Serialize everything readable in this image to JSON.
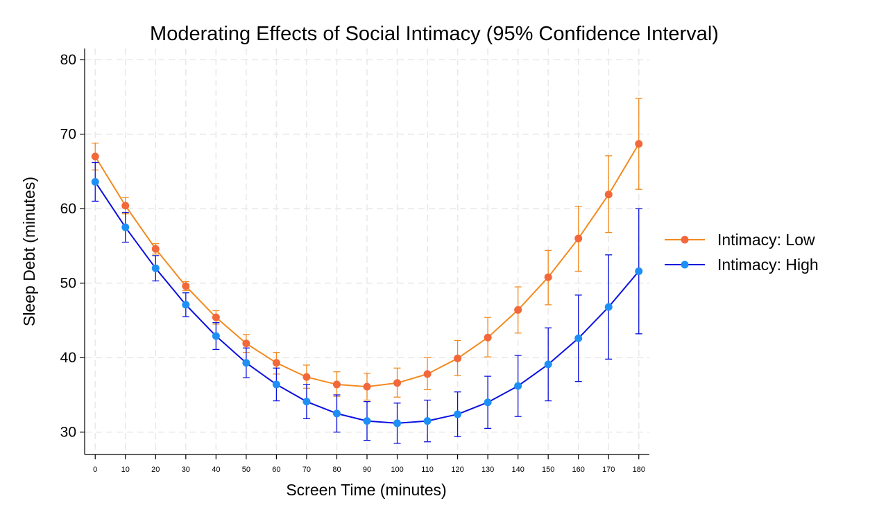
{
  "chart_data": {
    "type": "line",
    "title": "Moderating Effects of Social Intimacy (95% Confidence Interval)",
    "xlabel": "Screen Time (minutes)",
    "ylabel": "Sleep Debt (minutes)",
    "x": [
      0,
      10,
      20,
      30,
      40,
      50,
      60,
      70,
      80,
      90,
      100,
      110,
      120,
      130,
      140,
      150,
      160,
      170,
      180
    ],
    "x_ticks": [
      "0",
      "10",
      "20",
      "30",
      "40",
      "50",
      "60",
      "70",
      "80",
      "90",
      "100",
      "110",
      "120",
      "130",
      "140",
      "150",
      "160",
      "170",
      "180"
    ],
    "xlim": [
      -3.5,
      183.5
    ],
    "ylim": [
      27,
      81.5
    ],
    "y_ticks": [
      30,
      40,
      50,
      60,
      70,
      80
    ],
    "y_tick_labels": [
      "30",
      "40",
      "50",
      "60",
      "70",
      "80"
    ],
    "grid": true,
    "legend_position": "right",
    "series": [
      {
        "name": "Intimacy: Low",
        "line_color": "#f28a1e",
        "marker_color": "#f2683a",
        "values": [
          67.0,
          60.4,
          54.6,
          49.6,
          45.4,
          41.9,
          39.3,
          37.4,
          36.4,
          36.1,
          36.6,
          37.8,
          39.9,
          42.7,
          46.4,
          50.8,
          56.0,
          61.9,
          68.7
        ],
        "ci_lower": [
          65.2,
          59.3,
          53.9,
          49.0,
          44.5,
          40.7,
          37.8,
          35.9,
          34.8,
          34.3,
          34.7,
          35.7,
          37.6,
          40.1,
          43.3,
          47.1,
          51.6,
          56.8,
          62.6
        ],
        "ci_upper": [
          68.8,
          61.5,
          55.3,
          50.2,
          46.3,
          43.1,
          40.7,
          39.0,
          38.1,
          37.9,
          38.6,
          40.0,
          42.3,
          45.4,
          49.5,
          54.4,
          60.3,
          67.1,
          74.8
        ]
      },
      {
        "name": "Intimacy: High",
        "line_color": "#0a10e0",
        "marker_color": "#1e8ff5",
        "values": [
          63.6,
          57.5,
          52.0,
          47.1,
          42.9,
          39.3,
          36.4,
          34.1,
          32.5,
          31.5,
          31.2,
          31.5,
          32.4,
          34.0,
          36.2,
          39.1,
          42.6,
          46.8,
          51.6
        ],
        "ci_lower": [
          61.0,
          55.5,
          50.3,
          45.5,
          41.1,
          37.3,
          34.2,
          31.8,
          30.0,
          28.9,
          28.5,
          28.7,
          29.4,
          30.5,
          32.1,
          34.2,
          36.8,
          39.8,
          43.2
        ],
        "ci_upper": [
          66.2,
          59.5,
          53.7,
          48.7,
          44.7,
          41.3,
          38.6,
          36.4,
          35.0,
          34.1,
          33.9,
          34.3,
          35.4,
          37.5,
          40.3,
          44.0,
          48.4,
          53.8,
          60.0
        ]
      }
    ]
  }
}
